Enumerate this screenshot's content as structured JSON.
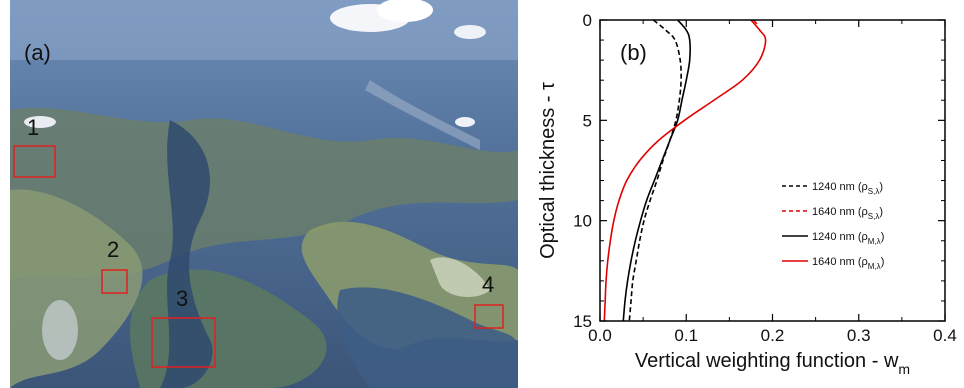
{
  "photo": {
    "panel_label": "(a)",
    "regions": [
      {
        "label": "1",
        "color": "#e02020"
      },
      {
        "label": "2",
        "color": "#e02020"
      },
      {
        "label": "3",
        "color": "#e02020"
      },
      {
        "label": "4",
        "color": "#e02020"
      }
    ]
  },
  "chart_data": {
    "type": "line",
    "panel_label": "(b)",
    "xlabel": "Vertical weighting function - w",
    "xlabel_sub": "m",
    "ylabel": "Optical thickness - τ",
    "xlim": [
      0,
      0.4
    ],
    "ylim": [
      15,
      0
    ],
    "y_inverted": true,
    "x_ticks": [
      0.0,
      0.1,
      0.2,
      0.3,
      0.4
    ],
    "x_tick_labels": [
      "0.0",
      "0.1",
      "0.2",
      "0.3",
      "0.4"
    ],
    "y_ticks": [
      0,
      5,
      10,
      15
    ],
    "y_tick_labels": [
      "0",
      "5",
      "10",
      "15"
    ],
    "legend_position": "right",
    "series": [
      {
        "name": "1240 nm (ρS,λ)",
        "name_main": "1240 nm (ρ",
        "name_sub": "S,λ",
        "color": "#000000",
        "dash": true,
        "points": [
          [
            0.062,
            0
          ],
          [
            0.076,
            0.5
          ],
          [
            0.087,
            1
          ],
          [
            0.093,
            2
          ],
          [
            0.094,
            3
          ],
          [
            0.092,
            4
          ],
          [
            0.088,
            5
          ],
          [
            0.081,
            6
          ],
          [
            0.073,
            7
          ],
          [
            0.066,
            8
          ],
          [
            0.058,
            9
          ],
          [
            0.051,
            10
          ],
          [
            0.046,
            11
          ],
          [
            0.042,
            12
          ],
          [
            0.038,
            13
          ],
          [
            0.036,
            14
          ],
          [
            0.034,
            15
          ]
        ]
      },
      {
        "name": "1640 nm (ρS,λ)",
        "name_main": "1640 nm (ρ",
        "name_sub": "S,λ",
        "color": "#e00000",
        "dash": true,
        "points": [
          [
            0.178,
            0
          ],
          [
            0.18,
            0.1
          ],
          [
            0.182,
            0.2
          ]
        ]
      },
      {
        "name": "1240 nm (ρM,λ)",
        "name_main": "1240 nm (ρ",
        "name_sub": "M,λ",
        "color": "#000000",
        "dash": false,
        "points": [
          [
            0.09,
            0
          ],
          [
            0.1,
            0.5
          ],
          [
            0.104,
            1
          ],
          [
            0.104,
            2
          ],
          [
            0.1,
            3
          ],
          [
            0.095,
            4
          ],
          [
            0.09,
            5
          ],
          [
            0.081,
            6
          ],
          [
            0.072,
            7
          ],
          [
            0.063,
            8
          ],
          [
            0.054,
            9
          ],
          [
            0.047,
            10
          ],
          [
            0.041,
            11
          ],
          [
            0.036,
            12
          ],
          [
            0.032,
            13
          ],
          [
            0.029,
            14
          ],
          [
            0.027,
            15
          ]
        ]
      },
      {
        "name": "1640 nm (ρM,λ)",
        "name_main": "1640 nm (ρ",
        "name_sub": "M,λ",
        "color": "#e00000",
        "dash": false,
        "points": [
          [
            0.175,
            0
          ],
          [
            0.185,
            0.5
          ],
          [
            0.192,
            1
          ],
          [
            0.185,
            2
          ],
          [
            0.165,
            3
          ],
          [
            0.132,
            4
          ],
          [
            0.098,
            5
          ],
          [
            0.068,
            6
          ],
          [
            0.046,
            7
          ],
          [
            0.031,
            8
          ],
          [
            0.022,
            9
          ],
          [
            0.016,
            10
          ],
          [
            0.012,
            11
          ],
          [
            0.009,
            12
          ],
          [
            0.007,
            13
          ],
          [
            0.006,
            14
          ],
          [
            0.005,
            15
          ]
        ]
      }
    ]
  }
}
